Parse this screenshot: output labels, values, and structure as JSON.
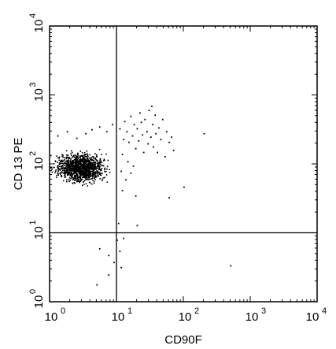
{
  "chart_data": {
    "type": "scatter",
    "xlabel": "CD90F",
    "ylabel": "CD 13 PE",
    "x_scale": "log",
    "y_scale": "log",
    "xlim": [
      1,
      10000
    ],
    "ylim": [
      1,
      10000
    ],
    "x_tick_labels": [
      {
        "base": "10",
        "exp": "0",
        "value": 1
      },
      {
        "base": "10",
        "exp": "1",
        "value": 10
      },
      {
        "base": "10",
        "exp": "2",
        "value": 100
      },
      {
        "base": "10",
        "exp": "3",
        "value": 1000
      },
      {
        "base": "10",
        "exp": "4",
        "value": 10000
      }
    ],
    "y_tick_labels": [
      {
        "base": "10",
        "exp": "0",
        "value": 1
      },
      {
        "base": "10",
        "exp": "1",
        "value": 10
      },
      {
        "base": "10",
        "exp": "2",
        "value": 100
      },
      {
        "base": "10",
        "exp": "3",
        "value": 1000
      },
      {
        "base": "10",
        "exp": "4",
        "value": 10000
      }
    ],
    "quadrant_gates": {
      "x": 10,
      "y": 10
    },
    "main_population": {
      "count_estimate": 1200,
      "x_log10_range": [
        0,
        1.1
      ],
      "y_log10_range": [
        1.55,
        2.55
      ],
      "x_log10_center": 0.45,
      "y_log10_center": 1.95
    },
    "sparse_points": [
      {
        "x": 1.3,
        "y": 260
      },
      {
        "x": 1.8,
        "y": 300
      },
      {
        "x": 2.5,
        "y": 240
      },
      {
        "x": 3.4,
        "y": 280
      },
      {
        "x": 4.2,
        "y": 320
      },
      {
        "x": 5.5,
        "y": 350
      },
      {
        "x": 7.0,
        "y": 300
      },
      {
        "x": 8.5,
        "y": 380
      },
      {
        "x": 11,
        "y": 330
      },
      {
        "x": 12.5,
        "y": 230
      },
      {
        "x": 13,
        "y": 420
      },
      {
        "x": 14,
        "y": 300
      },
      {
        "x": 15,
        "y": 210
      },
      {
        "x": 16,
        "y": 500
      },
      {
        "x": 17,
        "y": 260
      },
      {
        "x": 18,
        "y": 380
      },
      {
        "x": 19,
        "y": 170
      },
      {
        "x": 20,
        "y": 330
      },
      {
        "x": 21,
        "y": 220
      },
      {
        "x": 22,
        "y": 560
      },
      {
        "x": 23,
        "y": 410
      },
      {
        "x": 24,
        "y": 270
      },
      {
        "x": 25,
        "y": 150
      },
      {
        "x": 26,
        "y": 450
      },
      {
        "x": 28,
        "y": 300
      },
      {
        "x": 29,
        "y": 200
      },
      {
        "x": 30,
        "y": 610
      },
      {
        "x": 32,
        "y": 250
      },
      {
        "x": 33,
        "y": 700
      },
      {
        "x": 34,
        "y": 380
      },
      {
        "x": 35,
        "y": 180
      },
      {
        "x": 37,
        "y": 520
      },
      {
        "x": 38,
        "y": 280
      },
      {
        "x": 40,
        "y": 150
      },
      {
        "x": 42,
        "y": 340
      },
      {
        "x": 45,
        "y": 230
      },
      {
        "x": 48,
        "y": 450
      },
      {
        "x": 52,
        "y": 130
      },
      {
        "x": 55,
        "y": 300
      },
      {
        "x": 60,
        "y": 210
      },
      {
        "x": 65,
        "y": 250
      },
      {
        "x": 70,
        "y": 160
      },
      {
        "x": 12,
        "y": 140
      },
      {
        "x": 14.5,
        "y": 110
      },
      {
        "x": 17.5,
        "y": 95
      },
      {
        "x": 11.5,
        "y": 80
      },
      {
        "x": 13.5,
        "y": 60
      },
      {
        "x": 16,
        "y": 75
      },
      {
        "x": 12,
        "y": 42
      },
      {
        "x": 19,
        "y": 35
      },
      {
        "x": 60,
        "y": 33
      },
      {
        "x": 100,
        "y": 47
      },
      {
        "x": 200,
        "y": 280
      },
      {
        "x": 10.5,
        "y": 14
      },
      {
        "x": 12.5,
        "y": 8.5
      },
      {
        "x": 20,
        "y": 13
      },
      {
        "x": 10,
        "y": 8
      },
      {
        "x": 11,
        "y": 5.5
      },
      {
        "x": 7.5,
        "y": 4.8
      },
      {
        "x": 5.5,
        "y": 6
      },
      {
        "x": 5,
        "y": 1.8
      },
      {
        "x": 11.5,
        "y": 3.2
      },
      {
        "x": 500,
        "y": 3.4
      },
      {
        "x": 7.5,
        "y": 2.5
      },
      {
        "x": 9,
        "y": 3.8
      }
    ]
  }
}
